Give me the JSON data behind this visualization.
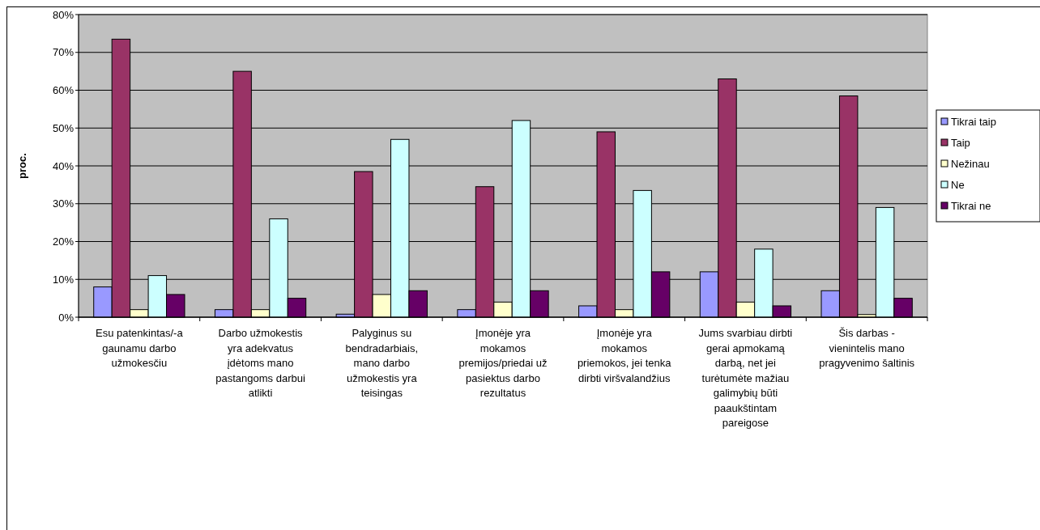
{
  "chart_data": {
    "type": "bar",
    "ylabel": "proc.",
    "categories": [
      "Esu patenkintas/-a gaunamu darbo užmokesčiu",
      "Darbo užmokestis yra adekvatus įdėtoms mano pastangoms darbui atlikti",
      "Palyginus su bendradarbiais, mano darbo užmokestis yra teisingas",
      "Įmonėje yra mokamos premijos/priedai už pasiektus darbo rezultatus",
      "Įmonėje yra mokamos priemokos, jei tenka dirbti viršvalandžius",
      "Jums svarbiau dirbti gerai apmokamą darbą, net jei turėtumėte mažiau galimybių būti paaukštintam pareigose",
      "Šis darbas - vienintelis mano pragyvenimo šaltinis"
    ],
    "series": [
      {
        "name": "Tikrai taip",
        "color": "#9999ff",
        "values": [
          8,
          2,
          0.8,
          2,
          3,
          12,
          7
        ]
      },
      {
        "name": "Taip",
        "color": "#993366",
        "values": [
          73.5,
          65,
          38.5,
          34.5,
          49,
          63,
          58.5
        ]
      },
      {
        "name": "Nežinau",
        "color": "#ffffcc",
        "values": [
          2,
          2,
          6,
          4,
          2,
          4,
          0.7
        ]
      },
      {
        "name": "Ne",
        "color": "#ccffff",
        "values": [
          11,
          26,
          47,
          52,
          33.5,
          18,
          29
        ]
      },
      {
        "name": "Tikrai ne",
        "color": "#660066",
        "values": [
          6,
          5,
          7,
          7,
          12,
          3,
          5
        ]
      }
    ],
    "ylim": [
      0,
      80
    ],
    "yticks": [
      {
        "value": 0,
        "label": "0%"
      },
      {
        "value": 10,
        "label": "10%"
      },
      {
        "value": 20,
        "label": "20%"
      },
      {
        "value": 30,
        "label": "30%"
      },
      {
        "value": 40,
        "label": "40%"
      },
      {
        "value": 50,
        "label": "50%"
      },
      {
        "value": 60,
        "label": "60%"
      },
      {
        "value": 70,
        "label": "70%"
      },
      {
        "value": 80,
        "label": "80%"
      }
    ],
    "grid": "y",
    "legend": "right"
  }
}
